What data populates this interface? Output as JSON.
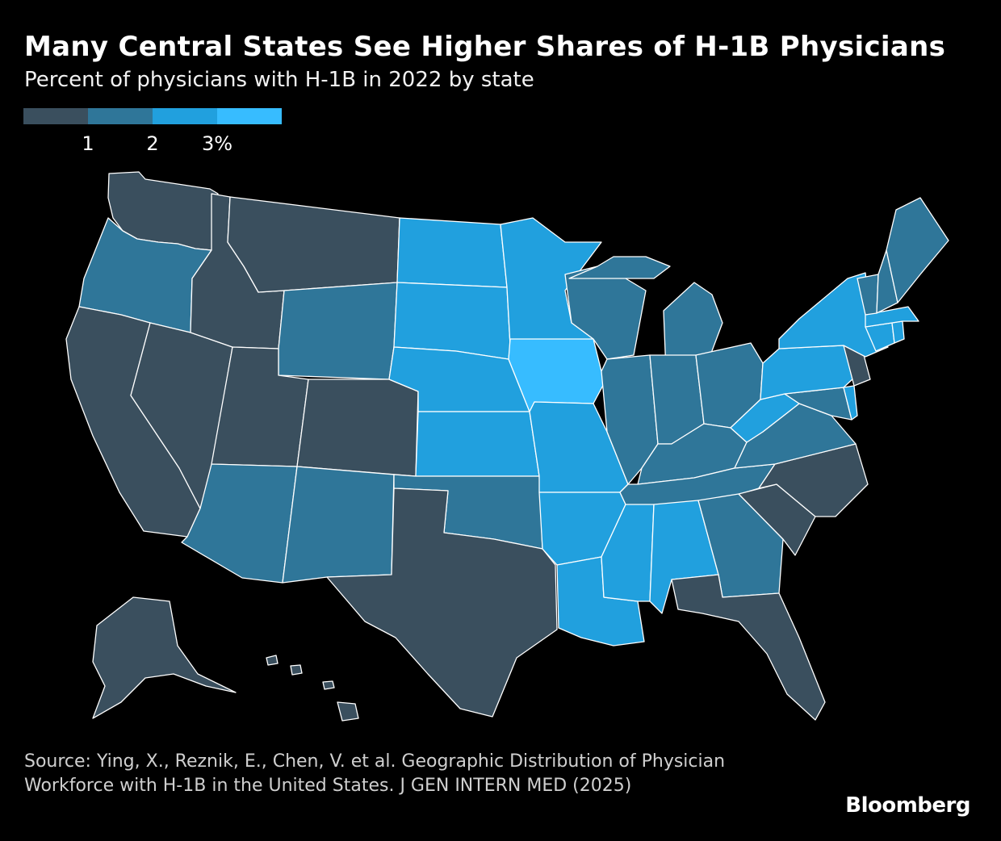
{
  "header": {
    "title": "Many Central States See Higher Shares of H-1B Physicians",
    "subtitle": "Percent of physicians with H-1B in 2022 by state"
  },
  "legend": {
    "bins": [
      {
        "range": "0–1",
        "color": "#3a4f5e"
      },
      {
        "range": "1–2",
        "color": "#2f7699"
      },
      {
        "range": "2–3",
        "color": "#21a0de"
      },
      {
        "range": "3+",
        "color": "#37bcff"
      }
    ],
    "tick_labels": [
      "1",
      "2",
      "3%"
    ]
  },
  "map_data": {
    "type": "choropleth",
    "metric": "Percent of physicians with H-1B in 2022",
    "states": [
      {
        "code": "WA",
        "bin": 0
      },
      {
        "code": "OR",
        "bin": 1
      },
      {
        "code": "CA",
        "bin": 0
      },
      {
        "code": "NV",
        "bin": 0
      },
      {
        "code": "ID",
        "bin": 0
      },
      {
        "code": "MT",
        "bin": 0
      },
      {
        "code": "WY",
        "bin": 1
      },
      {
        "code": "UT",
        "bin": 0
      },
      {
        "code": "CO",
        "bin": 0
      },
      {
        "code": "AZ",
        "bin": 1
      },
      {
        "code": "NM",
        "bin": 1
      },
      {
        "code": "ND",
        "bin": 2
      },
      {
        "code": "SD",
        "bin": 2
      },
      {
        "code": "NE",
        "bin": 2
      },
      {
        "code": "KS",
        "bin": 2
      },
      {
        "code": "OK",
        "bin": 1
      },
      {
        "code": "TX",
        "bin": 0
      },
      {
        "code": "MN",
        "bin": 2
      },
      {
        "code": "IA",
        "bin": 3
      },
      {
        "code": "MO",
        "bin": 2
      },
      {
        "code": "AR",
        "bin": 2
      },
      {
        "code": "LA",
        "bin": 2
      },
      {
        "code": "WI",
        "bin": 1
      },
      {
        "code": "IL",
        "bin": 1
      },
      {
        "code": "MI",
        "bin": 1
      },
      {
        "code": "IN",
        "bin": 1
      },
      {
        "code": "OH",
        "bin": 1
      },
      {
        "code": "KY",
        "bin": 1
      },
      {
        "code": "TN",
        "bin": 1
      },
      {
        "code": "MS",
        "bin": 2
      },
      {
        "code": "AL",
        "bin": 2
      },
      {
        "code": "GA",
        "bin": 1
      },
      {
        "code": "FL",
        "bin": 0
      },
      {
        "code": "SC",
        "bin": 0
      },
      {
        "code": "NC",
        "bin": 0
      },
      {
        "code": "VA",
        "bin": 1
      },
      {
        "code": "WV",
        "bin": 2
      },
      {
        "code": "MD",
        "bin": 1
      },
      {
        "code": "DE",
        "bin": 2
      },
      {
        "code": "PA",
        "bin": 2
      },
      {
        "code": "NJ",
        "bin": 0
      },
      {
        "code": "NY",
        "bin": 2
      },
      {
        "code": "CT",
        "bin": 2
      },
      {
        "code": "RI",
        "bin": 2
      },
      {
        "code": "MA",
        "bin": 2
      },
      {
        "code": "VT",
        "bin": 1
      },
      {
        "code": "NH",
        "bin": 1
      },
      {
        "code": "ME",
        "bin": 1
      },
      {
        "code": "AK",
        "bin": 0
      },
      {
        "code": "HI",
        "bin": 0
      }
    ]
  },
  "footer": {
    "source": "Source: Ying, X., Reznik, E., Chen, V. et al. Geographic Distribution of Physician Workforce with H-1B in the United States. J GEN INTERN MED (2025)",
    "logo": "Bloomberg"
  }
}
